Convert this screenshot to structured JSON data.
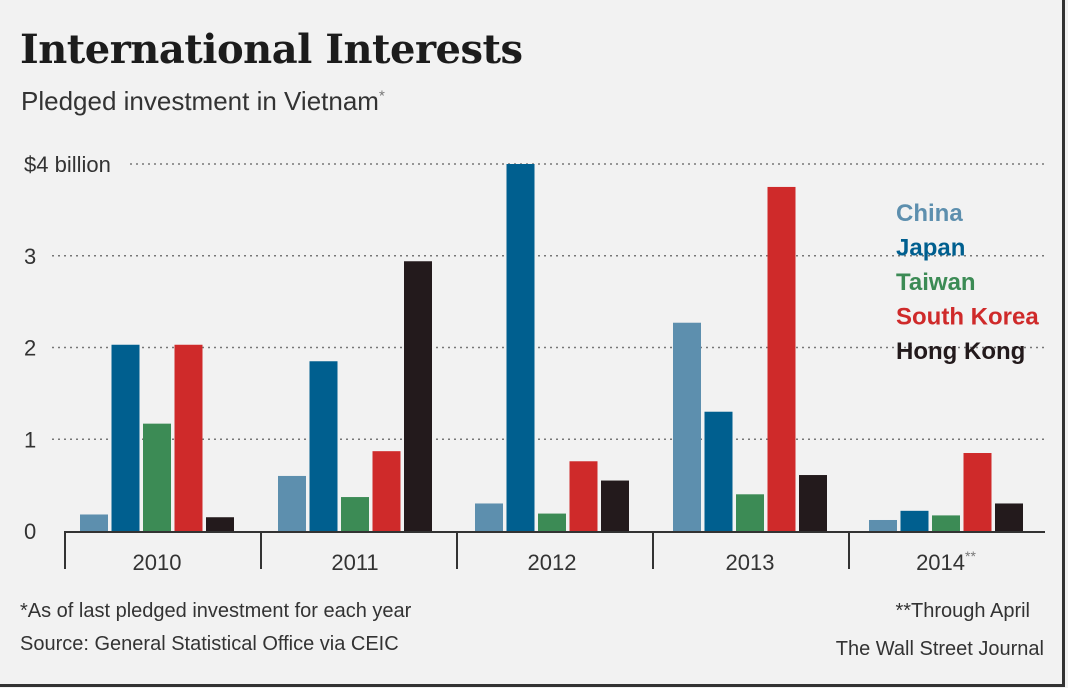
{
  "title": "International Interests",
  "subtitle": "Pledged investment in Vietnam",
  "subtitle_mark": "*",
  "chart_data": {
    "type": "bar",
    "title": "International Interests",
    "subtitle": "Pledged investment in Vietnam*",
    "ylabel": "$ billion",
    "ylim": [
      0,
      4
    ],
    "yticks": [
      0,
      1,
      2,
      3,
      4
    ],
    "ytick_labels": [
      "0",
      "1",
      "2",
      "3",
      "$4 billion"
    ],
    "grid": true,
    "legend_position": "right",
    "categories": [
      "2010",
      "2011",
      "2012",
      "2013",
      "2014**"
    ],
    "series": [
      {
        "name": "China",
        "color": "#5d8fae",
        "values": [
          0.18,
          0.6,
          0.3,
          2.27,
          0.12
        ]
      },
      {
        "name": "Japan",
        "color": "#005f8f",
        "values": [
          2.03,
          1.85,
          4.0,
          1.3,
          0.22
        ]
      },
      {
        "name": "Taiwan",
        "color": "#3c8b55",
        "values": [
          1.17,
          0.37,
          0.19,
          0.4,
          0.17
        ]
      },
      {
        "name": "South Korea",
        "color": "#cf2a2a",
        "values": [
          2.03,
          0.87,
          0.76,
          3.75,
          0.85
        ]
      },
      {
        "name": "Hong Kong",
        "color": "#231a1c",
        "values": [
          0.15,
          2.94,
          0.55,
          0.61,
          0.3
        ]
      }
    ]
  },
  "footnotes": {
    "left_1": "*As of last pledged investment for each year",
    "left_2": "Source: General Statistical Office via CEIC",
    "right_1": "**Through April",
    "right_2": "The Wall Street Journal"
  }
}
